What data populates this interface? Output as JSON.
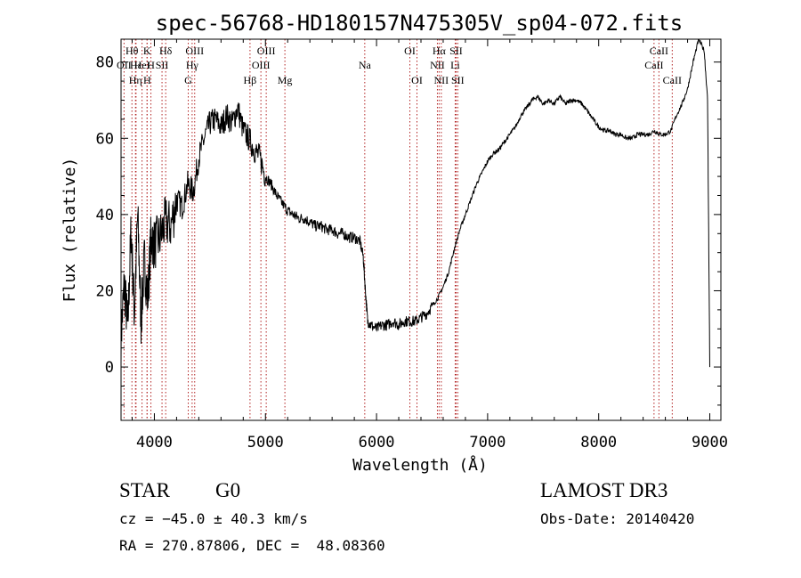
{
  "chart_data": {
    "type": "line",
    "title": "spec-56768-HD180157N475305V_sp04-072.fits",
    "xlabel": "Wavelength (Å)",
    "ylabel": "Flux (relative)",
    "xlim": [
      3700,
      9100
    ],
    "ylim": [
      -14,
      86
    ],
    "xticks": [
      4000,
      5000,
      6000,
      7000,
      8000,
      9000
    ],
    "yticks": [
      0,
      20,
      40,
      60,
      80
    ],
    "grid": false,
    "series": [
      {
        "x": [
          3700,
          3730,
          3760,
          3790,
          3820,
          3850,
          3880,
          3910,
          3940,
          3970,
          4000,
          4050,
          4100,
          4150,
          4200,
          4250,
          4300,
          4350,
          4400,
          4450,
          4500,
          4550,
          4600,
          4650,
          4700,
          4750,
          4800,
          4850,
          4900,
          4950,
          5000,
          5050,
          5100,
          5150,
          5200,
          5250,
          5300,
          5350,
          5400,
          5450,
          5500,
          5550,
          5600,
          5650,
          5700,
          5750,
          5800,
          5850,
          5880,
          5900,
          5920,
          5950,
          6000,
          6050,
          6100,
          6150,
          6200,
          6250,
          6300,
          6350,
          6400,
          6450,
          6500,
          6550,
          6600,
          6650,
          6700,
          6750,
          6800,
          6850,
          6900,
          6950,
          7000,
          7050,
          7100,
          7150,
          7200,
          7250,
          7300,
          7350,
          7400,
          7450,
          7500,
          7550,
          7600,
          7650,
          7700,
          7750,
          7800,
          7850,
          7900,
          7950,
          8000,
          8050,
          8100,
          8150,
          8200,
          8250,
          8300,
          8350,
          8400,
          8450,
          8500,
          8550,
          8600,
          8650,
          8700,
          8750,
          8800,
          8850,
          8900,
          8950,
          8980,
          9000
        ],
        "y": [
          8,
          22,
          10,
          36,
          14,
          40,
          12,
          28,
          18,
          34,
          32,
          34,
          38,
          37,
          44,
          42,
          48,
          46,
          55,
          60,
          64,
          65,
          63,
          66,
          64,
          68,
          62,
          60,
          57,
          55,
          50,
          48,
          45,
          43,
          41,
          40,
          39,
          39,
          38,
          37,
          37,
          36,
          36,
          35,
          35,
          34,
          34,
          33,
          29,
          20,
          12,
          11,
          10,
          11,
          11,
          12,
          11,
          12,
          12,
          12,
          13,
          14,
          16,
          18,
          21,
          25,
          31,
          36,
          40,
          44,
          48,
          51,
          54,
          56,
          57,
          59,
          61,
          63,
          66,
          68,
          70,
          71,
          69,
          70,
          69,
          71,
          69,
          70,
          70,
          69,
          67,
          65,
          63,
          62,
          62,
          61,
          61,
          60,
          60,
          61,
          61,
          61,
          62,
          61,
          61,
          62,
          66,
          69,
          73,
          80,
          86,
          83,
          70,
          0
        ]
      }
    ],
    "annotations": [
      {
        "label": "Hθ",
        "x": 3798,
        "row": 1
      },
      {
        "label": "K",
        "x": 3934,
        "row": 1
      },
      {
        "label": "Hδ",
        "x": 4102,
        "row": 1
      },
      {
        "label": "OII",
        "x": 3727,
        "row": 2
      },
      {
        "label": "H",
        "x": 3969,
        "row": 2
      },
      {
        "label": "OIII",
        "x": 4363,
        "row": 1
      },
      {
        "label": "Hε",
        "x": 3835,
        "row": 2
      },
      {
        "label": "HeI",
        "x": 3889,
        "row": 2
      },
      {
        "label": "SII",
        "x": 4069,
        "row": 2
      },
      {
        "label": "Hγ",
        "x": 4340,
        "row": 2
      },
      {
        "label": "Hη",
        "x": 3830,
        "row": 3
      },
      {
        "label": "G",
        "x": 4305,
        "row": 3
      },
      {
        "label": "H",
        "x": 3935,
        "row": 3
      },
      {
        "label": "OIII",
        "x": 5007,
        "row": 1
      },
      {
        "label": "OIII",
        "x": 4959,
        "row": 2
      },
      {
        "label": "Hβ",
        "x": 4861,
        "row": 3
      },
      {
        "label": "Mg",
        "x": 5175,
        "row": 3
      },
      {
        "label": "Na",
        "x": 5894,
        "row": 2
      },
      {
        "label": "OI",
        "x": 6300,
        "row": 1
      },
      {
        "label": "OI",
        "x": 6364,
        "row": 3
      },
      {
        "label": "Hα",
        "x": 6563,
        "row": 1
      },
      {
        "label": "SII",
        "x": 6716,
        "row": 1
      },
      {
        "label": "NII",
        "x": 6548,
        "row": 2
      },
      {
        "label": "Li",
        "x": 6708,
        "row": 2
      },
      {
        "label": "NII",
        "x": 6583,
        "row": 3
      },
      {
        "label": "SII",
        "x": 6731,
        "row": 3
      },
      {
        "label": "CaII",
        "x": 8542,
        "row": 1
      },
      {
        "label": "CaII",
        "x": 8498,
        "row": 2
      },
      {
        "label": "CaII",
        "x": 8662,
        "row": 3
      }
    ]
  },
  "info": {
    "object_class": "STAR",
    "subclass": "G0",
    "survey": "LAMOST DR3",
    "cz": "cz = −45.0 ± 40.3 km/s",
    "obs_date": "Obs-Date: 20140420",
    "coords": "RA = 270.87806, DEC =  48.08360"
  },
  "colors": {
    "spectrum": "#000000",
    "line_markers": "#b22222",
    "axes": "#000000"
  }
}
